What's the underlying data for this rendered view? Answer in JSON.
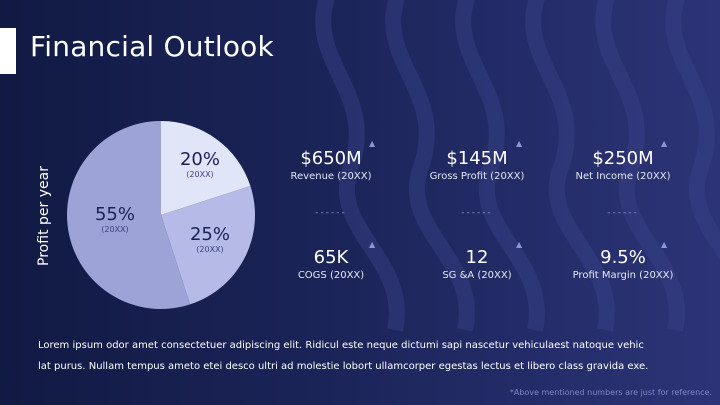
{
  "slide": {
    "title": "Financial Outlook",
    "paragraph_line1": "Lorem ipsum odor amet consectetuer adipiscing elit. Ridicul este neque dictumi sapi nascetur vehiculaest natoque vehic",
    "paragraph_line2": "lat purus. Nullam tempus ameto etei desco ultri ad molestie lobort ullamcorper egestas lectus et libero class gravida exe.",
    "footnote": "*Above mentioned numbers are just for reference."
  },
  "chart_data": {
    "type": "pie",
    "title": "",
    "ylabel": "Profit per year",
    "slices": [
      {
        "label": "20%",
        "sublabel": "(20XX)",
        "value": 20,
        "color": "#e1e5f8"
      },
      {
        "label": "25%",
        "sublabel": "(20XX)",
        "value": 25,
        "color": "#b5bbe6"
      },
      {
        "label": "55%",
        "sublabel": "(20XX)",
        "value": 55,
        "color": "#9da3d7"
      }
    ]
  },
  "metrics": [
    {
      "value": "$650M",
      "caption": "Revenue (20XX)",
      "icon": "up-triangle-icon"
    },
    {
      "value": "$145M",
      "caption": "Gross Profit (20XX)",
      "icon": "up-triangle-icon"
    },
    {
      "value": "$250M",
      "caption": "Net Income (20XX)",
      "icon": "up-triangle-icon"
    },
    {
      "value": "65K",
      "caption": "COGS (20XX)",
      "icon": "up-triangle-icon"
    },
    {
      "value": "12",
      "caption": "SG &A (20XX)",
      "icon": "up-triangle-icon"
    },
    {
      "value": "9.5%",
      "caption": "Profit Margin (20XX)",
      "icon": "up-triangle-icon"
    }
  ],
  "separator": "------",
  "colors": {
    "background_left": "#111a43",
    "background_right": "#2c3477",
    "accent": "#8d95d6"
  }
}
